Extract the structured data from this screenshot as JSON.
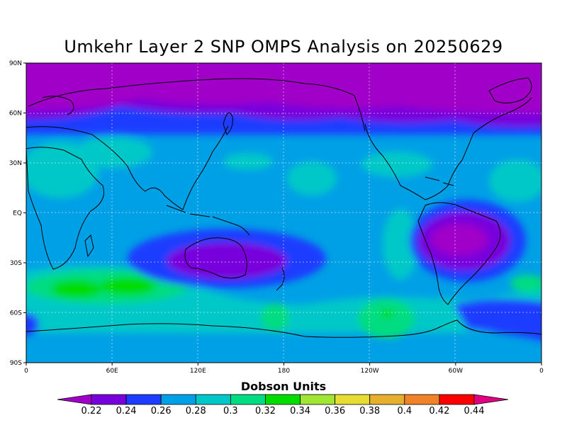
{
  "title": "Umkehr Layer 2 SNP OMPS Analysis on 20250629",
  "colorbar": {
    "title": "Dobson Units",
    "levels": [
      "0.22",
      "0.24",
      "0.26",
      "0.28",
      "0.3",
      "0.32",
      "0.34",
      "0.36",
      "0.38",
      "0.4",
      "0.42",
      "0.44"
    ],
    "colors": [
      "#a000c8",
      "#7800dc",
      "#1e3cff",
      "#00a0e6",
      "#00c8c8",
      "#00dc82",
      "#00dc00",
      "#a0e632",
      "#e6dc32",
      "#e6af2d",
      "#f08228",
      "#fa0000",
      "#e00080"
    ]
  },
  "axes": {
    "lat_labels": [
      "90N",
      "60N",
      "30N",
      "EQ",
      "30S",
      "60S",
      "90S"
    ],
    "lon_labels": [
      "0",
      "60E",
      "120E",
      "180",
      "120W",
      "60W",
      "0"
    ]
  },
  "field_colors": {
    "c022": "#a000c8",
    "c024": "#7800dc",
    "c026": "#1e3cff",
    "c028": "#00a0e6",
    "c030": "#00c8c8",
    "c032": "#00dc82",
    "c034": "#00dc00"
  }
}
